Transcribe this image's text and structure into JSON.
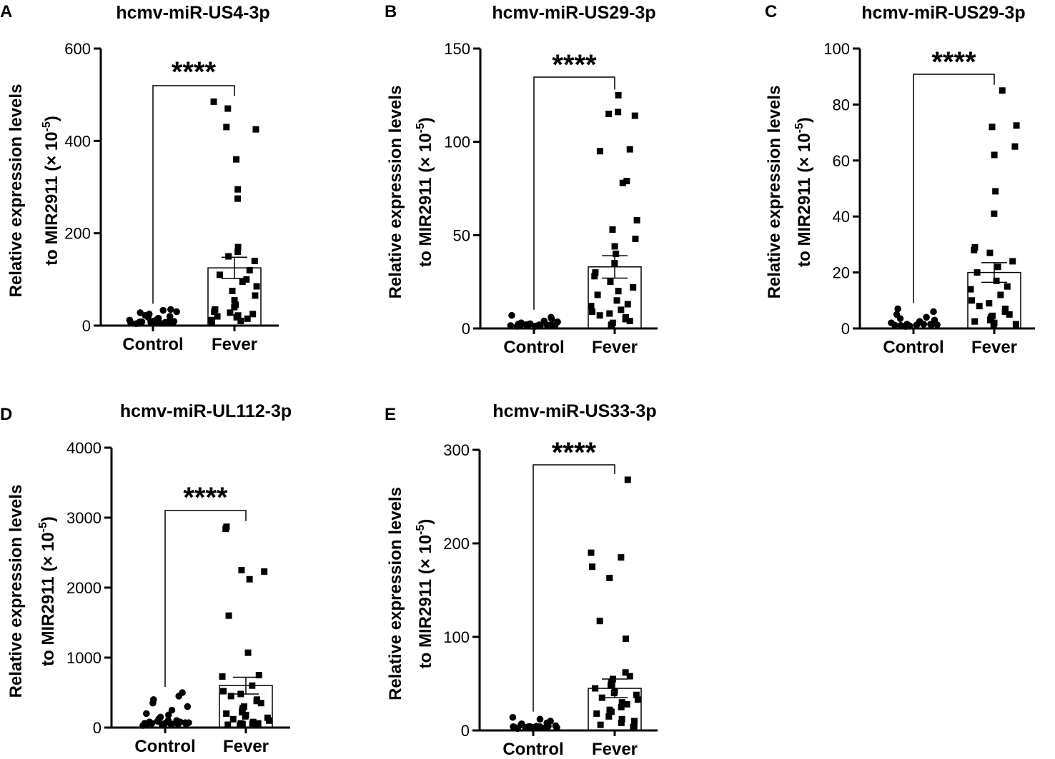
{
  "chart_data": [
    {
      "panel": "A",
      "type": "scatter",
      "title": "hcmv-miR-US4-3p",
      "ylabel_line1": "Relative expression levels",
      "ylabel_line2": "to MIR2911 (× 10",
      "ylabel_exp": "-5",
      "ylabel_close": ")",
      "ylim": [
        0,
        600
      ],
      "yticks": [
        0,
        200,
        400,
        600
      ],
      "categories": [
        "Control",
        "Fever"
      ],
      "significance": "****",
      "bar_means": [
        null,
        125
      ],
      "sem": [
        null,
        23
      ],
      "series": [
        {
          "name": "Control",
          "marker": "circle",
          "values": [
            2,
            3,
            4,
            5,
            6,
            7,
            8,
            9,
            10,
            12,
            14,
            16,
            18,
            20,
            22,
            25,
            28,
            30,
            33,
            35,
            5,
            3,
            4,
            6,
            8,
            2,
            1,
            7
          ]
        },
        {
          "name": "Fever",
          "marker": "square",
          "values": [
            485,
            470,
            430,
            425,
            360,
            295,
            275,
            170,
            160,
            150,
            140,
            120,
            110,
            100,
            95,
            85,
            75,
            65,
            55,
            45,
            40,
            35,
            30,
            28,
            25,
            22,
            20,
            18,
            15,
            12,
            10,
            8
          ]
        }
      ]
    },
    {
      "panel": "B",
      "type": "scatter",
      "title": "hcmv-miR-US29-3p",
      "ylabel_line1": "Relative expression levels",
      "ylabel_line2": "to MIR2911 (× 10",
      "ylabel_exp": "-5",
      "ylabel_close": ")",
      "ylim": [
        0,
        150
      ],
      "yticks": [
        0,
        50,
        100,
        150
      ],
      "categories": [
        "Control",
        "Fever"
      ],
      "significance": "****",
      "bar_means": [
        null,
        33
      ],
      "sem": [
        null,
        6
      ],
      "series": [
        {
          "name": "Control",
          "marker": "circle",
          "values": [
            0.3,
            0.5,
            0.8,
            1,
            1.2,
            1.5,
            1.8,
            2,
            2.5,
            3,
            3.5,
            4,
            5,
            6,
            7,
            0.5,
            0.7,
            1,
            1.2,
            0.4,
            0.8,
            1.5
          ]
        },
        {
          "name": "Fever",
          "marker": "square",
          "values": [
            125,
            116,
            115,
            114,
            96,
            95,
            79,
            78,
            58,
            53,
            48,
            44,
            40,
            35,
            30,
            28,
            25,
            22,
            20,
            18,
            15,
            13,
            12,
            10,
            9,
            8,
            7,
            6,
            5,
            4,
            3,
            2,
            1
          ]
        }
      ]
    },
    {
      "panel": "C",
      "type": "scatter",
      "title": "hcmv-miR-US29-3p",
      "ylabel_line1": "Relative expression levels",
      "ylabel_line2": "to MIR2911 (× 10",
      "ylabel_exp": "-5",
      "ylabel_close": ")",
      "ylim": [
        0,
        100
      ],
      "yticks": [
        0,
        20,
        40,
        60,
        80,
        100
      ],
      "categories": [
        "Control",
        "Fever"
      ],
      "significance": "****",
      "bar_means": [
        null,
        20
      ],
      "sem": [
        null,
        3.5
      ],
      "series": [
        {
          "name": "Control",
          "marker": "circle",
          "values": [
            0.2,
            0.4,
            0.6,
            0.8,
            1,
            1.2,
            1.5,
            2,
            2.5,
            3,
            3.5,
            4,
            5,
            6,
            7,
            0.5,
            0.7,
            1,
            0.3,
            0.8,
            1.2
          ]
        },
        {
          "name": "Fever",
          "marker": "square",
          "values": [
            85,
            72.5,
            72,
            65,
            62,
            49,
            41,
            29,
            28,
            27,
            24,
            22,
            20,
            17,
            15,
            14,
            12,
            10,
            9,
            8,
            7,
            6,
            5,
            4.5,
            4,
            3.5,
            3,
            2.5,
            2,
            1.5,
            1
          ]
        }
      ]
    },
    {
      "panel": "D",
      "type": "scatter",
      "title": "hcmv-miR-UL112-3p",
      "ylabel_line1": "Relative expression levels",
      "ylabel_line2": "to MIR2911 (× 10",
      "ylabel_exp": "-5",
      "ylabel_close": ")",
      "ylim": [
        0,
        4000
      ],
      "yticks": [
        0,
        1000,
        2000,
        3000,
        4000
      ],
      "categories": [
        "Control",
        "Fever"
      ],
      "significance": "****",
      "bar_means": [
        null,
        600
      ],
      "sem": [
        null,
        120
      ],
      "series": [
        {
          "name": "Control",
          "marker": "circle",
          "values": [
            10,
            20,
            30,
            40,
            50,
            60,
            70,
            80,
            90,
            100,
            120,
            150,
            180,
            200,
            250,
            300,
            350,
            400,
            450,
            500,
            30,
            40,
            60,
            80,
            100,
            20,
            50,
            70
          ]
        },
        {
          "name": "Fever",
          "marker": "square",
          "values": [
            2870,
            2840,
            2250,
            2230,
            2120,
            1600,
            1070,
            750,
            730,
            600,
            520,
            480,
            450,
            400,
            380,
            350,
            300,
            280,
            250,
            220,
            200,
            180,
            160,
            140,
            120,
            100,
            80,
            60,
            50,
            40,
            30,
            20,
            10
          ]
        }
      ]
    },
    {
      "panel": "E",
      "type": "scatter",
      "title": "hcmv-miR-US33-3p",
      "ylabel_line1": "Relative expression levels",
      "ylabel_line2": "to MIR2911 (× 10",
      "ylabel_exp": "-5",
      "ylabel_close": ")",
      "ylim": [
        0,
        300
      ],
      "yticks": [
        0,
        100,
        200,
        300
      ],
      "categories": [
        "Control",
        "Fever"
      ],
      "significance": "****",
      "bar_means": [
        null,
        45
      ],
      "sem": [
        null,
        10
      ],
      "series": [
        {
          "name": "Control",
          "marker": "circle",
          "values": [
            0.5,
            1,
            1.5,
            2,
            2.5,
            3,
            3.5,
            4,
            5,
            6,
            7,
            8,
            10,
            12,
            14,
            2,
            3,
            1,
            4,
            2.5,
            1.5
          ]
        },
        {
          "name": "Fever",
          "marker": "square",
          "values": [
            268,
            190,
            185,
            175,
            163,
            117,
            98,
            62,
            58,
            55,
            52,
            50,
            48,
            45,
            42,
            40,
            38,
            35,
            33,
            30,
            28,
            25,
            22,
            20,
            18,
            15,
            12,
            10,
            8,
            6,
            5,
            4,
            2
          ]
        }
      ]
    }
  ]
}
